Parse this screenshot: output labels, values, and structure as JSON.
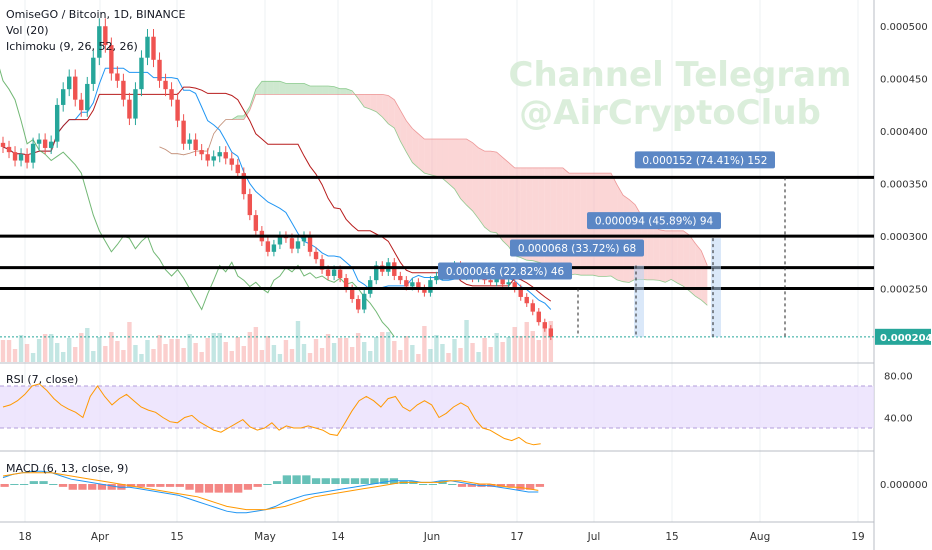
{
  "header": {
    "title": "OmiseGO / Bitcoin, 1D, BINANCE",
    "vol_label": "Vol (20)",
    "ichimoku_label": "Ichimoku (9, 26, 52, 26)"
  },
  "watermark": {
    "line1": "Channel Telegram",
    "line2": "@AirCryptoClub"
  },
  "colors": {
    "up": "#26a69a",
    "down": "#ef5350",
    "tenkan": "#2196f3",
    "kijun": "#b71c1c",
    "chikou": "#43a047",
    "cloud_bull": "#a5d6a7",
    "cloud_bear": "#f8b4b4",
    "rsi": "#ff9800",
    "rsi_band": "#e8defc",
    "macd": "#2196f3",
    "signal": "#ff9800",
    "price_line": "#26a69a",
    "label_bg": "#5b87c5"
  },
  "chart_data": [
    {
      "type": "candlestick",
      "title": "OmiseGO / Bitcoin, 1D, BINANCE",
      "x_tick_labels": [
        "18",
        "Apr",
        "15",
        "May",
        "14",
        "Jun",
        "17",
        "Jul",
        "15",
        "Aug",
        "19"
      ],
      "y_tick_labels": [
        "0.000500",
        "0.000450",
        "0.000400",
        "0.000350",
        "0.000300",
        "0.000250",
        "0.000204"
      ],
      "ylim": [
        0.00018,
        0.000525
      ],
      "last_price": 0.000204,
      "close_series": [
        0.000385,
        0.00038,
        0.000372,
        0.000378,
        0.00037,
        0.000388,
        0.000392,
        0.000384,
        0.00039,
        0.000425,
        0.00044,
        0.000452,
        0.00043,
        0.00042,
        0.000445,
        0.00047,
        0.0005,
        0.000482,
        0.000455,
        0.000448,
        0.00043,
        0.000412,
        0.00044,
        0.00047,
        0.00049,
        0.000468,
        0.000448,
        0.00044,
        0.00043,
        0.00041,
        0.000388,
        0.000392,
        0.000382,
        0.000378,
        0.000372,
        0.000376,
        0.00038,
        0.000374,
        0.000368,
        0.00036,
        0.00034,
        0.00032,
        0.000305,
        0.000295,
        0.000285,
        0.000292,
        0.0003,
        0.000298,
        0.000288,
        0.000295,
        0.0003,
        0.000285,
        0.000278,
        0.000268,
        0.000262,
        0.000268,
        0.00026,
        0.00025,
        0.00024,
        0.00023,
        0.000245,
        0.000258,
        0.000272,
        0.000266,
        0.000275,
        0.000262,
        0.000258,
        0.000252,
        0.000256,
        0.00025,
        0.000246,
        0.000258,
        0.000262,
        0.00027,
        0.000266,
        0.000272,
        0.000262,
        0.000265,
        0.00026,
        0.000262,
        0.000258,
        0.000256,
        0.00026,
        0.000254,
        0.000256,
        0.00025,
        0.000242,
        0.000236,
        0.000228,
        0.000218,
        0.000212,
        0.000204
      ],
      "horizontal_levels": [
        0.000356,
        0.0003,
        0.00027,
        0.00025
      ],
      "projections": [
        {
          "label": "0.000046 (22.82%) 46",
          "target": 0.00025
        },
        {
          "label": "0.000068 (33.72%) 68",
          "target": 0.000272
        },
        {
          "label": "0.000094 (45.89%) 94",
          "target": 0.000298
        },
        {
          "label": "0.000152 (74.41%) 152",
          "target": 0.000356
        }
      ]
    },
    {
      "type": "line",
      "title": "RSI (7, close)",
      "y_tick_labels": [
        "80.00",
        "40.00"
      ],
      "ylim": [
        10,
        90
      ],
      "band": [
        70,
        30
      ],
      "values": [
        50,
        52,
        56,
        62,
        70,
        72,
        66,
        58,
        52,
        48,
        45,
        40,
        60,
        70,
        60,
        52,
        58,
        62,
        56,
        50,
        47,
        45,
        40,
        36,
        35,
        40,
        42,
        36,
        32,
        28,
        26,
        30,
        34,
        38,
        31,
        28,
        30,
        35,
        28,
        32,
        30,
        30,
        32,
        30,
        28,
        24,
        23,
        34,
        46,
        56,
        60,
        56,
        50,
        58,
        60,
        50,
        46,
        52,
        56,
        52,
        40,
        44,
        50,
        54,
        50,
        38,
        30,
        28,
        24,
        20,
        18,
        21,
        16,
        14,
        15
      ]
    },
    {
      "type": "bar+line",
      "title": "MACD (6, 13, close, 9)",
      "y_tick_labels": [
        "0.000000"
      ],
      "macd": [
        4,
        6,
        7,
        8,
        8,
        7,
        5,
        3,
        2,
        1,
        0,
        -1,
        -2,
        -2,
        -3,
        -4,
        -5,
        -6,
        -7,
        -9,
        -11,
        -13,
        -15,
        -17,
        -18,
        -18,
        -17,
        -16,
        -14,
        -11,
        -9,
        -7,
        -6,
        -5,
        -4,
        -3,
        -2,
        -1,
        0,
        1,
        2,
        2,
        2,
        1,
        1,
        2,
        2,
        1,
        0,
        -1,
        -1,
        -2,
        -3,
        -4,
        -5,
        -5
      ],
      "signal": [
        5,
        6,
        7,
        7,
        7,
        7,
        6,
        5,
        4,
        3,
        2,
        1,
        0,
        -1,
        -2,
        -3,
        -4,
        -5,
        -6,
        -7,
        -8,
        -10,
        -12,
        -14,
        -15,
        -16,
        -16,
        -16,
        -15,
        -14,
        -12,
        -10,
        -8,
        -7,
        -6,
        -5,
        -4,
        -3,
        -2,
        -1,
        0,
        1,
        1,
        1,
        1,
        1,
        2,
        2,
        1,
        0,
        0,
        -1,
        -2,
        -2,
        -3,
        -4
      ]
    }
  ],
  "price_axis_main": [
    "0.000500",
    "0.000450",
    "0.000400",
    "0.000350",
    "0.000300",
    "0.000250"
  ],
  "price_axis_rsi": [
    "80.00",
    "40.00"
  ],
  "price_axis_macd": [
    "0.000000"
  ]
}
